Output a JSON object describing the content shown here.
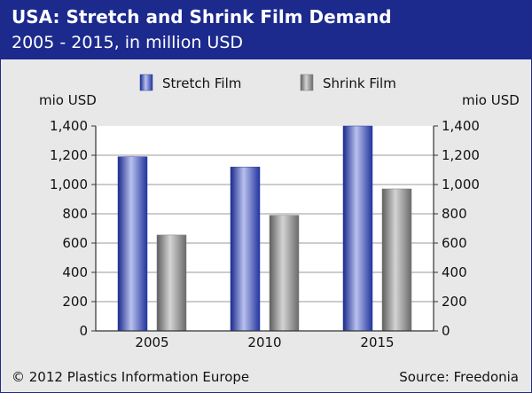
{
  "header": {
    "title": "USA: Stretch and Shrink Film Demand",
    "subtitle": "2005 - 2015, in million USD"
  },
  "footer": {
    "copyright": "© 2012 Plastics Information Europe",
    "source": "Source: Freedonia"
  },
  "colors": {
    "header_bg": "#1c2a8e",
    "stretch": "#2c3ea8",
    "shrink": "#7a7a7a",
    "plot_bg": "#ffffff",
    "panel_bg": "#e8e8e8"
  },
  "chart_data": {
    "type": "bar",
    "categories": [
      "2005",
      "2010",
      "2015"
    ],
    "series": [
      {
        "name": "Stretch Film",
        "values": [
          1190,
          1120,
          1400
        ]
      },
      {
        "name": "Shrink Film",
        "values": [
          655,
          790,
          970
        ]
      }
    ],
    "ylabel_left": "mio USD",
    "ylabel_right": "mio USD",
    "ylim": [
      0,
      1400
    ],
    "yticks": [
      0,
      200,
      400,
      600,
      800,
      1000,
      1200,
      1400
    ],
    "ytick_labels": [
      "0",
      "200",
      "400",
      "600",
      "800",
      "1,000",
      "1,200",
      "1,400"
    ],
    "grid": true,
    "legend_position": "top"
  }
}
